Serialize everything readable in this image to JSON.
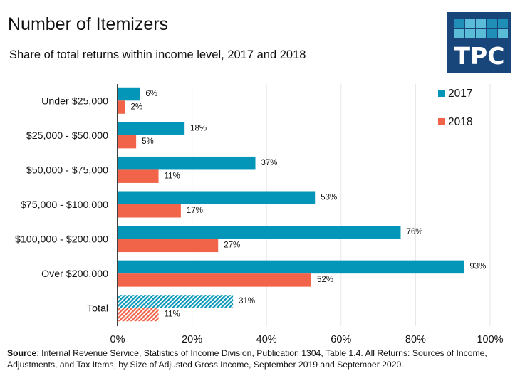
{
  "header": {
    "title": "Number of Itemizers",
    "subtitle": "Share of total returns within income level, 2017 and 2018"
  },
  "logo": {
    "text": "TPC",
    "colors": {
      "background": "#18467a",
      "tile_light": "#5bbcd8",
      "tile_dark": "#1f8fb8"
    }
  },
  "colors": {
    "series_2017": "#0396b8",
    "series_2018": "#f2644a",
    "grid": "#e6e6e6",
    "axis": "#000000"
  },
  "chart_data": {
    "type": "bar",
    "orientation": "horizontal",
    "title": "Number of Itemizers",
    "subtitle": "Share of total returns within income level, 2017 and 2018",
    "xlabel": "",
    "ylabel": "",
    "xlim": [
      0,
      100
    ],
    "x_ticks": [
      "0%",
      "20%",
      "40%",
      "60%",
      "80%",
      "100%"
    ],
    "x_tick_values": [
      0,
      20,
      40,
      60,
      80,
      100
    ],
    "grid": true,
    "legend_position": "top-right",
    "categories": [
      "Under $25,000",
      "$25,000 - $50,000",
      "$50,000 - $75,000",
      "$75,000 - $100,000",
      "$100,000 - $200,000",
      "Over $200,000",
      "Total"
    ],
    "hatched_categories": [
      "Total"
    ],
    "series": [
      {
        "name": "2017",
        "color": "#0396b8",
        "values": [
          6,
          18,
          37,
          53,
          76,
          93,
          31
        ],
        "labels": [
          "6%",
          "18%",
          "37%",
          "53%",
          "76%",
          "93%",
          "31%"
        ]
      },
      {
        "name": "2018",
        "color": "#f2644a",
        "values": [
          2,
          5,
          11,
          17,
          27,
          52,
          11
        ],
        "labels": [
          "2%",
          "5%",
          "11%",
          "17%",
          "27%",
          "52%",
          "11%"
        ]
      }
    ]
  },
  "footer": {
    "source_label": "Source",
    "source_text": ": Internal Revenue Service, Statistics of Income Division, Publication 1304, Table 1.4. All Returns: Sources of Income, Adjustments, and Tax Items, by Size of Adjusted Gross Income, September 2019 and September 2020."
  }
}
